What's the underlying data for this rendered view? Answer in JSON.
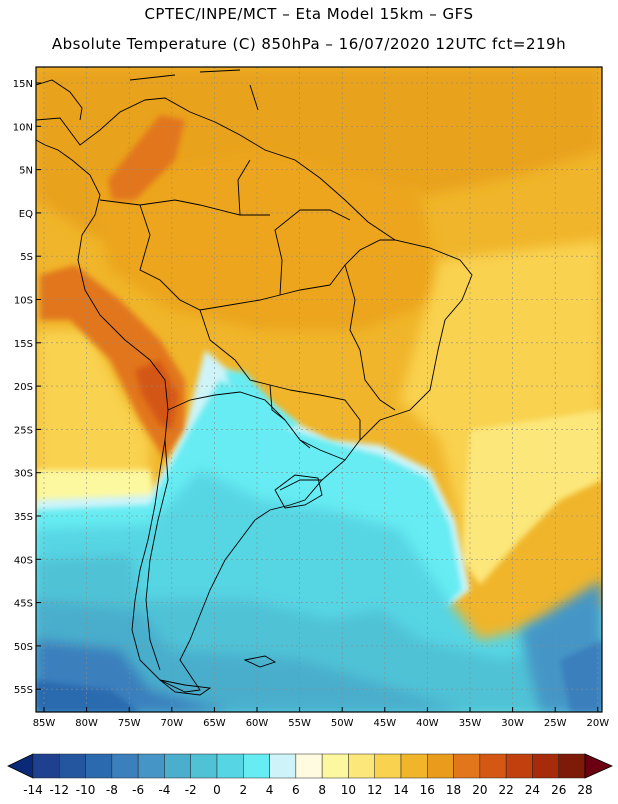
{
  "title_line1": "CPTEC/INPE/MCT –  Eta Model 15km – GFS",
  "title_line2": "Absolute Temperature (C) 850hPa – 16/07/2020 12UTC fct=219h",
  "lat_labels": [
    "15N",
    "10N",
    "5N",
    "EQ",
    "5S",
    "10S",
    "15S",
    "20S",
    "25S",
    "30S",
    "35S",
    "40S",
    "45S",
    "50S",
    "55S"
  ],
  "lon_labels": [
    "85W",
    "80W",
    "75W",
    "70W",
    "65W",
    "60W",
    "55W",
    "50W",
    "45W",
    "40W",
    "35W",
    "30W",
    "25W",
    "20W"
  ],
  "colorbar": {
    "ticks": [
      "-14",
      "-12",
      "-10",
      "-8",
      "-6",
      "-4",
      "-2",
      "0",
      "2",
      "4",
      "6",
      "8",
      "10",
      "12",
      "14",
      "16",
      "18",
      "20",
      "22",
      "24",
      "26",
      "28"
    ],
    "colors": [
      "#1f3f8f",
      "#24559f",
      "#2c6aaf",
      "#3b7fbd",
      "#4596c6",
      "#4aaecc",
      "#4fc2d6",
      "#56d5e3",
      "#66ecf2",
      "#cef4f9",
      "#fefbe1",
      "#fcf89f",
      "#fce77a",
      "#f9d24f",
      "#f0b52a",
      "#e99c1c",
      "#e2761a",
      "#d45714",
      "#c2400e",
      "#a52b0a",
      "#7e1a08"
    ],
    "under_color": "#0a2a78",
    "over_color": "#6b0012"
  }
}
